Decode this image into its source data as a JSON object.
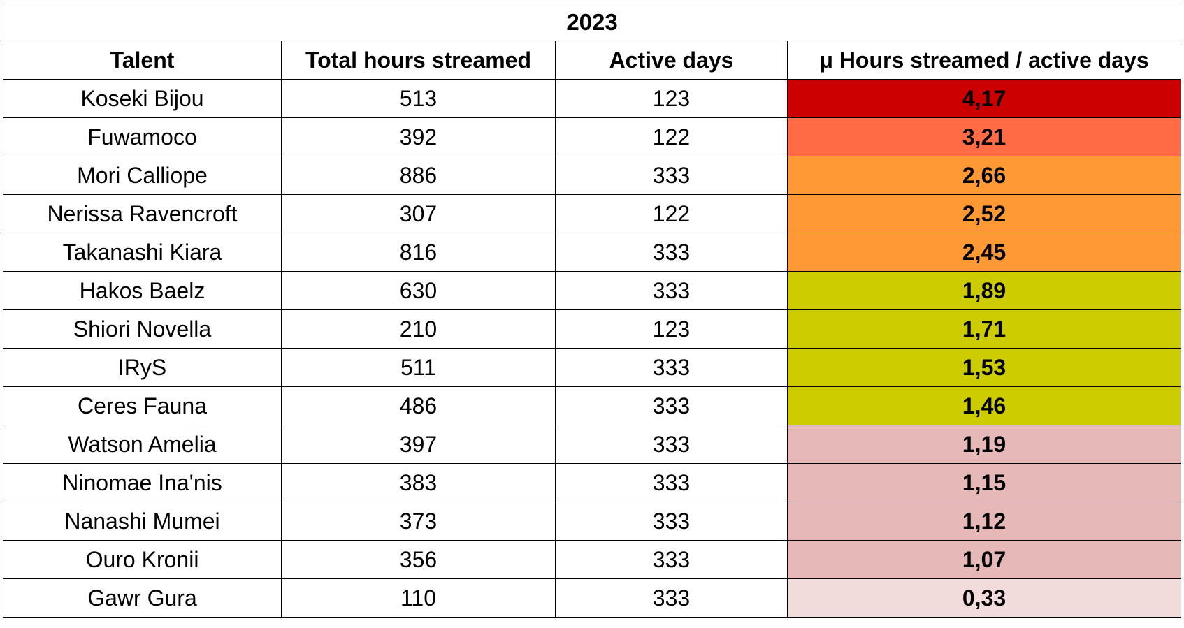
{
  "chart_data": {
    "type": "table",
    "title": "2023",
    "columns": [
      "Talent",
      "Total hours streamed",
      "Active days",
      "μ Hours streamed / active days"
    ],
    "rows": [
      {
        "talent": "Koseki Bijou",
        "total_hours": "513",
        "active_days": "123",
        "mu": "4,17",
        "color": "#cc0000"
      },
      {
        "talent": "Fuwamoco",
        "total_hours": "392",
        "active_days": "122",
        "mu": "3,21",
        "color": "#ff6b44"
      },
      {
        "talent": "Mori Calliope",
        "total_hours": "886",
        "active_days": "333",
        "mu": "2,66",
        "color": "#ff9933"
      },
      {
        "talent": "Nerissa Ravencroft",
        "total_hours": "307",
        "active_days": "122",
        "mu": "2,52",
        "color": "#ff9933"
      },
      {
        "talent": "Takanashi Kiara",
        "total_hours": "816",
        "active_days": "333",
        "mu": "2,45",
        "color": "#ff9933"
      },
      {
        "talent": "Hakos Baelz",
        "total_hours": "630",
        "active_days": "333",
        "mu": "1,89",
        "color": "#cccc00"
      },
      {
        "talent": "Shiori Novella",
        "total_hours": "210",
        "active_days": "123",
        "mu": "1,71",
        "color": "#cccc00"
      },
      {
        "talent": "IRyS",
        "total_hours": "511",
        "active_days": "333",
        "mu": "1,53",
        "color": "#cccc00"
      },
      {
        "talent": "Ceres Fauna",
        "total_hours": "486",
        "active_days": "333",
        "mu": "1,46",
        "color": "#cccc00"
      },
      {
        "talent": "Watson Amelia",
        "total_hours": "397",
        "active_days": "333",
        "mu": "1,19",
        "color": "#e6b8b7"
      },
      {
        "talent": "Ninomae Ina'nis",
        "total_hours": "383",
        "active_days": "333",
        "mu": "1,15",
        "color": "#e6b8b7"
      },
      {
        "talent": "Nanashi Mumei",
        "total_hours": "373",
        "active_days": "333",
        "mu": "1,12",
        "color": "#e6b8b7"
      },
      {
        "talent": "Ouro Kronii",
        "total_hours": "356",
        "active_days": "333",
        "mu": "1,07",
        "color": "#e6b8b7"
      },
      {
        "talent": "Gawr Gura",
        "total_hours": "110",
        "active_days": "333",
        "mu": "0,33",
        "color": "#f2dcdb"
      }
    ]
  }
}
